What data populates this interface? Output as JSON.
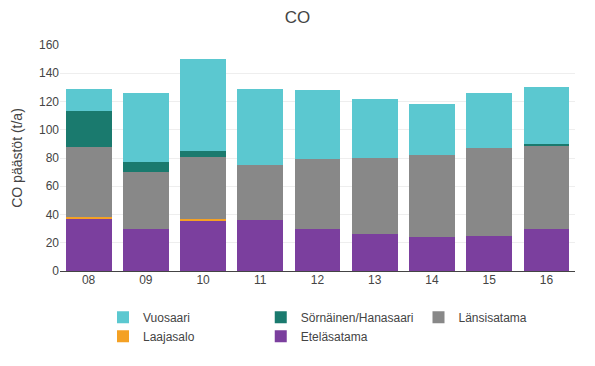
{
  "chart_data": {
    "type": "bar",
    "stacked": true,
    "title": "CO",
    "ylabel": "CO päästöt (t/a)",
    "categories": [
      "08",
      "09",
      "10",
      "11",
      "12",
      "13",
      "14",
      "15",
      "16"
    ],
    "series": [
      {
        "name": "Eteläsatama",
        "color": "#7b3f9e",
        "values": [
          37,
          30,
          36,
          36,
          30,
          26,
          24,
          25,
          30
        ]
      },
      {
        "name": "Laajasalo",
        "color": "#f4a124",
        "values": [
          1,
          0,
          1,
          0,
          0,
          0,
          0,
          0,
          0
        ]
      },
      {
        "name": "Länsisatama",
        "color": "#888888",
        "values": [
          50,
          40,
          44,
          39,
          49,
          54,
          58,
          62,
          59
        ]
      },
      {
        "name": "Sörnäinen/Hanasaari",
        "color": "#1a7a6e",
        "values": [
          25,
          7,
          4,
          0,
          0,
          0,
          0,
          0,
          1
        ]
      },
      {
        "name": "Vuosaari",
        "color": "#5bc8d0",
        "values": [
          16,
          49,
          65,
          54,
          49,
          42,
          36,
          39,
          40
        ]
      }
    ],
    "ylim": [
      0,
      160
    ],
    "yticks": [
      0,
      20,
      40,
      60,
      80,
      100,
      120,
      140,
      160
    ],
    "grid": true,
    "legend": "bottom"
  }
}
